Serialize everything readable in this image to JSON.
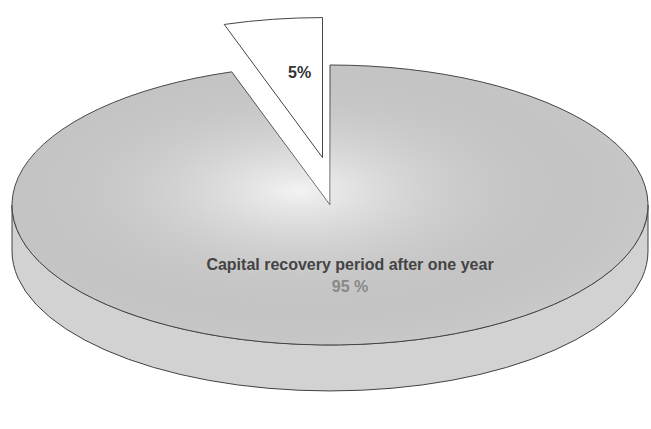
{
  "chart_data": {
    "type": "pie",
    "categories": [
      null,
      "Capital recovery period after one year"
    ],
    "values": [
      5,
      95
    ],
    "value_labels": [
      "5%",
      "95 %"
    ],
    "colors": [
      "#ffffff",
      "#e4e4e4"
    ],
    "data_labels": true
  }
}
